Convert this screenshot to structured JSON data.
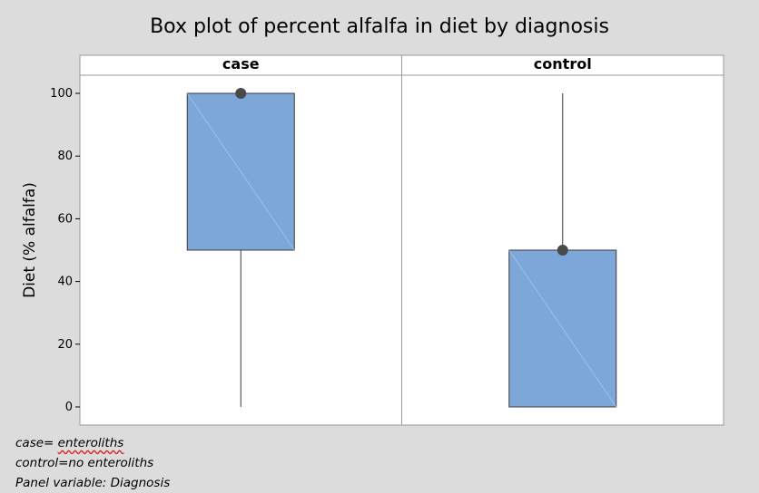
{
  "chart_data": {
    "type": "box",
    "title": "Box plot of percent alfalfa in diet by diagnosis",
    "ylabel": "Diet (% alfalfa)",
    "ylim": [
      -6,
      112
    ],
    "yticks": [
      0,
      20,
      40,
      60,
      80,
      100
    ],
    "grid": false,
    "panel_variable": "Diagnosis",
    "panels": [
      {
        "label": "case",
        "min": 0,
        "q1": 50,
        "median": 100,
        "q3": 100,
        "max": 100,
        "mean": 100
      },
      {
        "label": "control",
        "min": 0,
        "q1": 0,
        "median": 50,
        "q3": 50,
        "max": 100,
        "mean": 50
      }
    ],
    "colors": {
      "box_fill": "#7da7d9",
      "box_stroke": "#3c3c3c",
      "mean_marker": "#4a4a4a",
      "background": "#dcdcdc",
      "panel_bg": "#ffffff"
    }
  },
  "footnotes": {
    "case_prefix": "case= ",
    "case_value": "enteroliths",
    "control": "control=no enteroliths",
    "panel_variable": "Panel variable: Diagnosis"
  }
}
